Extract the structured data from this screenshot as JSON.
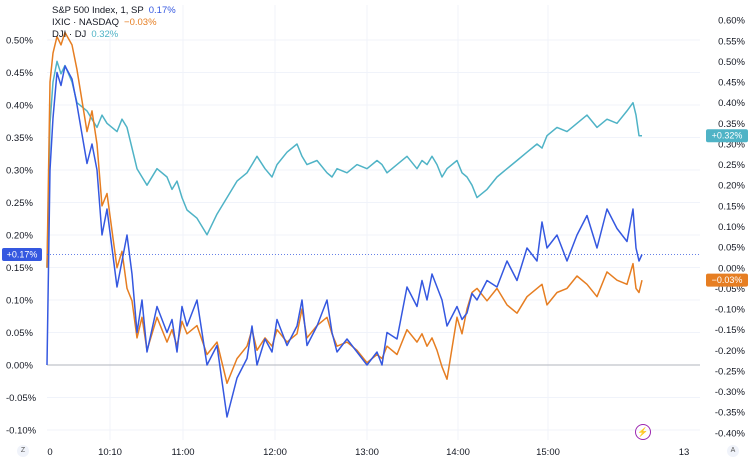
{
  "legend": {
    "sp": {
      "name": "S&P 500 Index, 1, SP",
      "value": "0.17%"
    },
    "ixic": {
      "name": "IXIC · NASDAQ",
      "value": "−0.03%"
    },
    "dji": {
      "name": "DJI · DJ",
      "value": "0.32%"
    }
  },
  "colors": {
    "sp": "#3558e0",
    "ixic": "#e67e22",
    "dji": "#4fb3c6"
  },
  "corner_buttons": {
    "left": "Z",
    "right": "A"
  },
  "chart_data": {
    "type": "line",
    "x_ticks": [
      "0",
      "10:10",
      "11:00",
      "12:00",
      "13:00",
      "14:00",
      "15:00",
      "13"
    ],
    "left_axis": {
      "ticks": [
        "0.50%",
        "0.45%",
        "0.40%",
        "0.35%",
        "0.30%",
        "0.25%",
        "0.20%",
        "0.15%",
        "0.10%",
        "0.05%",
        "0.00%",
        "-0.05%",
        "-0.10%"
      ],
      "ylim": [
        -0.12,
        0.52
      ]
    },
    "right_axis": {
      "ticks": [
        "0.60%",
        "0.55%",
        "0.50%",
        "0.45%",
        "0.40%",
        "0.35%",
        "0.30%",
        "0.25%",
        "0.20%",
        "0.15%",
        "0.10%",
        "0.05%",
        "0.00%",
        "-0.05%",
        "-0.10%",
        "-0.15%",
        "-0.20%",
        "-0.25%",
        "-0.30%",
        "-0.35%",
        "-0.40%"
      ],
      "ylim": [
        -0.41,
        0.61
      ]
    },
    "zero_line": 0.0,
    "series": [
      {
        "key": "sp",
        "name": "S&P 500 Index, 1, SP",
        "axis": "left",
        "last_label": "+0.17%",
        "x": [
          0,
          3,
          6,
          10,
          14,
          18,
          25,
          30,
          40,
          45,
          50,
          55,
          60,
          70,
          75,
          80,
          85,
          90,
          95,
          100,
          110,
          120,
          125,
          130,
          135,
          140,
          150,
          160,
          170,
          180,
          190,
          200,
          205,
          210,
          218,
          225,
          230,
          240,
          250,
          255,
          260,
          270,
          280,
          285,
          290,
          300,
          310,
          320,
          330,
          335,
          340,
          350,
          360,
          370,
          375,
          380,
          385,
          390,
          395,
          400,
          410,
          415,
          420,
          425,
          430,
          440,
          450,
          460,
          470,
          480,
          490,
          495,
          500,
          510,
          520,
          530,
          540,
          550,
          560,
          570,
          580,
          586,
          589,
          592,
          595
        ],
        "y": [
          0.0,
          0.3,
          0.38,
          0.45,
          0.43,
          0.46,
          0.44,
          0.4,
          0.31,
          0.34,
          0.3,
          0.2,
          0.24,
          0.12,
          0.16,
          0.2,
          0.14,
          0.05,
          0.1,
          0.02,
          0.09,
          0.05,
          0.07,
          0.02,
          0.09,
          0.06,
          0.1,
          0.0,
          0.03,
          -0.08,
          -0.02,
          0.01,
          0.06,
          0.0,
          0.04,
          0.02,
          0.07,
          0.03,
          0.06,
          0.1,
          0.03,
          0.06,
          0.1,
          0.05,
          0.02,
          0.04,
          0.02,
          0.0,
          0.02,
          0.0,
          0.05,
          0.04,
          0.12,
          0.09,
          0.13,
          0.1,
          0.14,
          0.12,
          0.1,
          0.06,
          0.09,
          0.07,
          0.08,
          0.11,
          0.1,
          0.13,
          0.12,
          0.16,
          0.13,
          0.18,
          0.16,
          0.22,
          0.18,
          0.2,
          0.16,
          0.2,
          0.23,
          0.18,
          0.24,
          0.21,
          0.19,
          0.24,
          0.18,
          0.16,
          0.17
        ]
      },
      {
        "key": "ixic",
        "name": "IXIC · NASDAQ",
        "axis": "right",
        "last_label": "−0.03%",
        "x": [
          0,
          3,
          6,
          10,
          14,
          18,
          25,
          30,
          40,
          45,
          50,
          55,
          60,
          70,
          75,
          80,
          85,
          90,
          95,
          100,
          110,
          120,
          125,
          130,
          135,
          140,
          150,
          160,
          170,
          180,
          190,
          200,
          205,
          210,
          218,
          225,
          230,
          240,
          250,
          255,
          260,
          270,
          280,
          285,
          290,
          300,
          310,
          320,
          330,
          335,
          340,
          350,
          360,
          370,
          375,
          380,
          385,
          390,
          395,
          400,
          410,
          415,
          420,
          425,
          430,
          440,
          450,
          460,
          470,
          480,
          490,
          495,
          500,
          510,
          520,
          530,
          540,
          550,
          560,
          570,
          580,
          586,
          589,
          592,
          595
        ],
        "y": [
          0.0,
          0.45,
          0.52,
          0.56,
          0.54,
          0.57,
          0.54,
          0.48,
          0.33,
          0.38,
          0.3,
          0.15,
          0.18,
          0.0,
          0.04,
          -0.05,
          -0.08,
          -0.17,
          -0.12,
          -0.2,
          -0.12,
          -0.18,
          -0.15,
          -0.19,
          -0.13,
          -0.16,
          -0.14,
          -0.21,
          -0.18,
          -0.28,
          -0.22,
          -0.19,
          -0.15,
          -0.2,
          -0.17,
          -0.19,
          -0.15,
          -0.18,
          -0.16,
          -0.1,
          -0.17,
          -0.14,
          -0.12,
          -0.16,
          -0.19,
          -0.18,
          -0.2,
          -0.23,
          -0.21,
          -0.22,
          -0.19,
          -0.21,
          -0.15,
          -0.18,
          -0.16,
          -0.19,
          -0.17,
          -0.2,
          -0.24,
          -0.27,
          -0.12,
          -0.16,
          -0.1,
          -0.06,
          -0.05,
          -0.08,
          -0.05,
          -0.09,
          -0.11,
          -0.07,
          -0.05,
          -0.04,
          -0.09,
          -0.06,
          -0.05,
          -0.02,
          -0.04,
          -0.07,
          -0.01,
          -0.03,
          -0.04,
          0.01,
          -0.05,
          -0.06,
          -0.03
        ]
      },
      {
        "key": "dji",
        "name": "DJI · DJ",
        "axis": "right",
        "last_label": "+0.32%",
        "x": [
          0,
          3,
          6,
          10,
          14,
          18,
          25,
          30,
          40,
          45,
          50,
          55,
          60,
          70,
          75,
          80,
          85,
          90,
          95,
          100,
          110,
          120,
          125,
          130,
          135,
          140,
          150,
          160,
          170,
          180,
          190,
          200,
          205,
          210,
          218,
          225,
          230,
          240,
          250,
          255,
          260,
          270,
          280,
          285,
          290,
          300,
          310,
          320,
          330,
          335,
          340,
          350,
          360,
          370,
          375,
          380,
          385,
          390,
          395,
          400,
          410,
          415,
          420,
          425,
          430,
          440,
          450,
          460,
          470,
          480,
          490,
          495,
          500,
          510,
          520,
          530,
          540,
          550,
          560,
          570,
          580,
          586,
          589,
          592,
          595
        ],
        "y": [
          0.0,
          0.35,
          0.45,
          0.5,
          0.47,
          0.49,
          0.45,
          0.4,
          0.38,
          0.36,
          0.34,
          0.37,
          0.35,
          0.33,
          0.36,
          0.34,
          0.29,
          0.24,
          0.22,
          0.2,
          0.24,
          0.22,
          0.19,
          0.21,
          0.17,
          0.14,
          0.12,
          0.08,
          0.13,
          0.17,
          0.21,
          0.23,
          0.25,
          0.27,
          0.24,
          0.22,
          0.25,
          0.28,
          0.3,
          0.27,
          0.25,
          0.26,
          0.23,
          0.22,
          0.24,
          0.23,
          0.25,
          0.24,
          0.26,
          0.25,
          0.23,
          0.25,
          0.27,
          0.24,
          0.26,
          0.25,
          0.27,
          0.25,
          0.22,
          0.24,
          0.26,
          0.23,
          0.22,
          0.2,
          0.17,
          0.19,
          0.22,
          0.24,
          0.26,
          0.28,
          0.3,
          0.29,
          0.32,
          0.34,
          0.33,
          0.35,
          0.37,
          0.34,
          0.36,
          0.35,
          0.38,
          0.4,
          0.37,
          0.32,
          0.32
        ]
      }
    ]
  }
}
